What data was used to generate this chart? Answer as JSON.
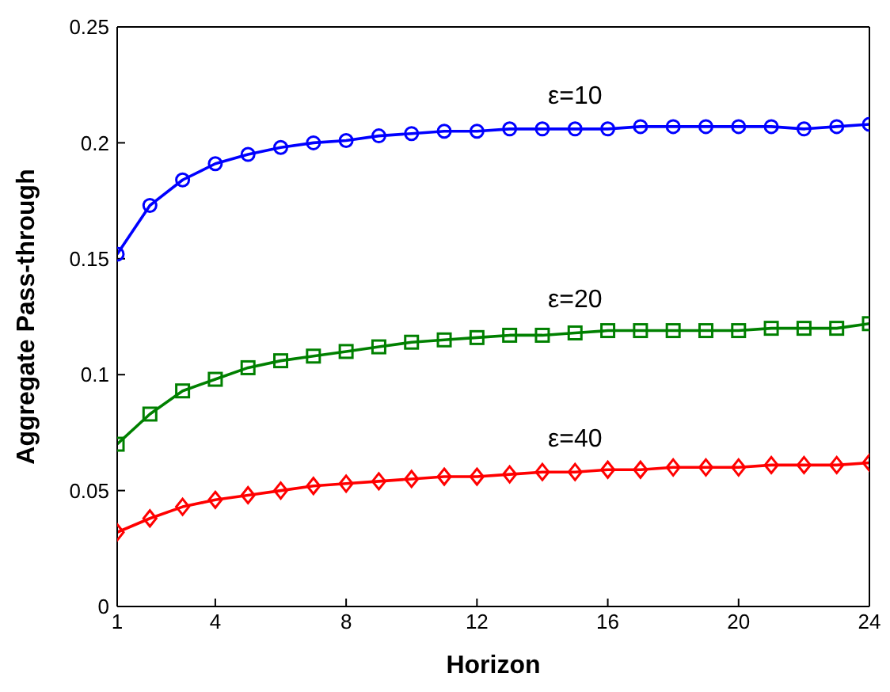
{
  "chart_data": {
    "type": "line",
    "xlabel": "Horizon",
    "ylabel": "Aggregate Pass-through",
    "x": [
      1,
      2,
      3,
      4,
      5,
      6,
      7,
      8,
      9,
      10,
      11,
      12,
      13,
      14,
      15,
      16,
      17,
      18,
      19,
      20,
      21,
      22,
      23,
      24
    ],
    "xlim": [
      1,
      24
    ],
    "xticks": [
      1,
      4,
      8,
      12,
      16,
      20,
      24
    ],
    "ylim": [
      0,
      0.25
    ],
    "yticks": [
      0,
      0.05,
      0.1,
      0.15,
      0.2,
      0.25
    ],
    "grid": false,
    "line_style": "solid",
    "series": [
      {
        "name": "ε=10",
        "color": "#0000ff",
        "marker": "circle",
        "values": [
          0.152,
          0.173,
          0.184,
          0.191,
          0.195,
          0.198,
          0.2,
          0.201,
          0.203,
          0.204,
          0.205,
          0.205,
          0.206,
          0.206,
          0.206,
          0.206,
          0.207,
          0.207,
          0.207,
          0.207,
          0.207,
          0.206,
          0.207,
          0.208
        ]
      },
      {
        "name": "ε=20",
        "color": "#008000",
        "marker": "square",
        "values": [
          0.07,
          0.083,
          0.093,
          0.098,
          0.103,
          0.106,
          0.108,
          0.11,
          0.112,
          0.114,
          0.115,
          0.116,
          0.117,
          0.117,
          0.118,
          0.119,
          0.119,
          0.119,
          0.119,
          0.119,
          0.12,
          0.12,
          0.12,
          0.122
        ]
      },
      {
        "name": "ε=40",
        "color": "#ff0000",
        "marker": "diamond",
        "values": [
          0.032,
          0.038,
          0.043,
          0.046,
          0.048,
          0.05,
          0.052,
          0.053,
          0.054,
          0.055,
          0.056,
          0.056,
          0.057,
          0.058,
          0.058,
          0.059,
          0.059,
          0.06,
          0.06,
          0.06,
          0.061,
          0.061,
          0.061,
          0.062
        ]
      }
    ]
  }
}
